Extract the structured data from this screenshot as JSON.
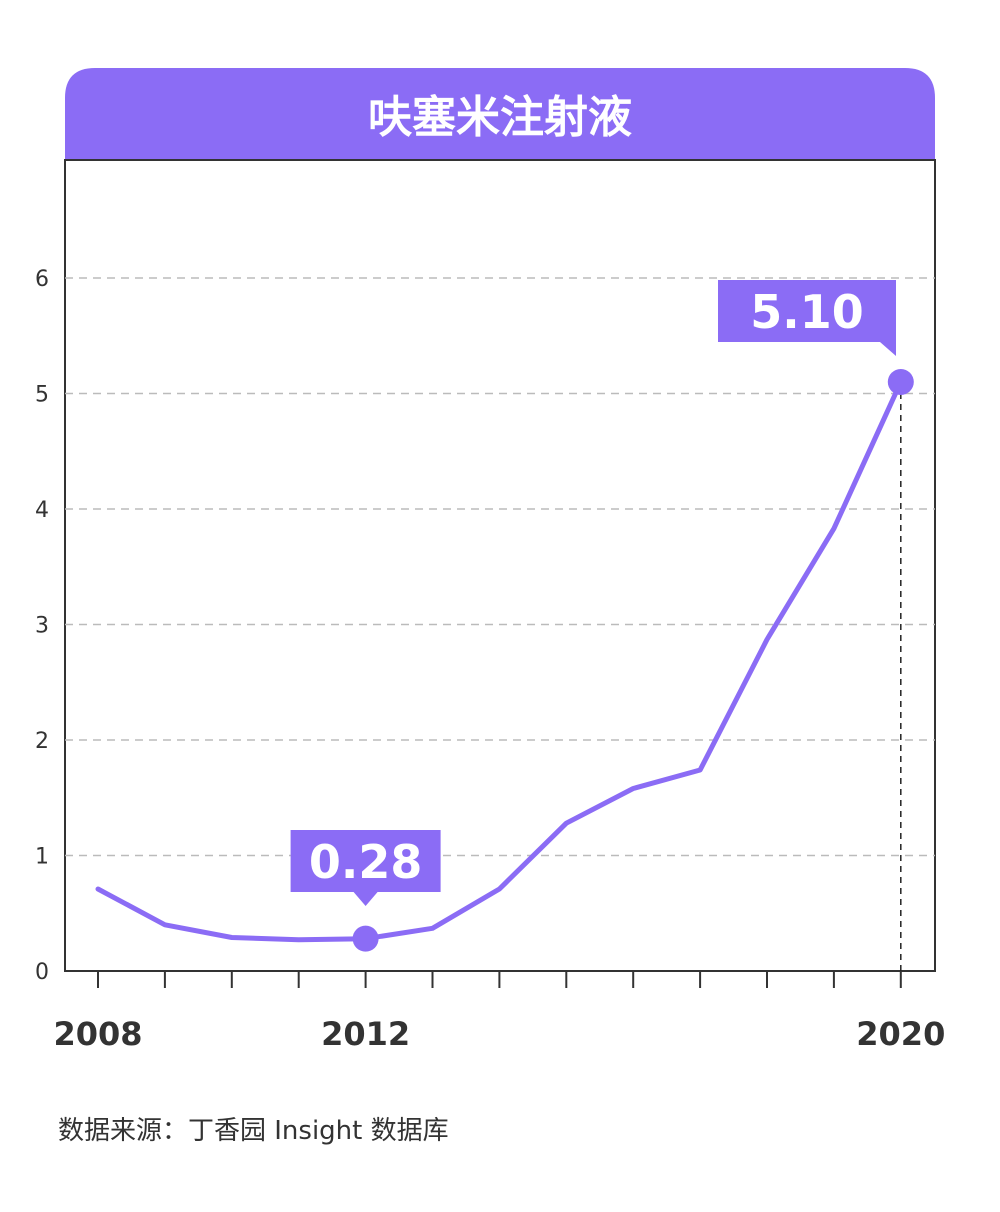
{
  "chart_data": {
    "type": "line",
    "title": "呋塞米注射液",
    "x": [
      2008,
      2009,
      2010,
      2011,
      2012,
      2013,
      2014,
      2015,
      2016,
      2017,
      2018,
      2019,
      2020
    ],
    "series": [
      {
        "values": [
          0.71,
          0.4,
          0.29,
          0.27,
          0.28,
          0.37,
          0.71,
          1.28,
          1.58,
          1.74,
          2.87,
          3.83,
          5.1
        ]
      }
    ],
    "xticks_labeled": [
      "2008",
      "2012",
      "2020"
    ],
    "yticks": [
      0,
      1,
      2,
      3,
      4,
      5,
      6
    ],
    "ylim": [
      0,
      6.8
    ],
    "xlim": [
      2007.5,
      2020.5
    ],
    "grid": "horizontal dashed",
    "annotations": [
      {
        "label": "0.28",
        "x": 2012,
        "y": 0.28
      },
      {
        "label": "5.10",
        "x": 2020,
        "y": 5.1
      }
    ]
  },
  "footer": {
    "source": "数据来源：丁香园 Insight 数据库"
  },
  "colors": {
    "accent": "#8B6CF5",
    "grid": "#bbbbbb",
    "axis": "#333333"
  }
}
